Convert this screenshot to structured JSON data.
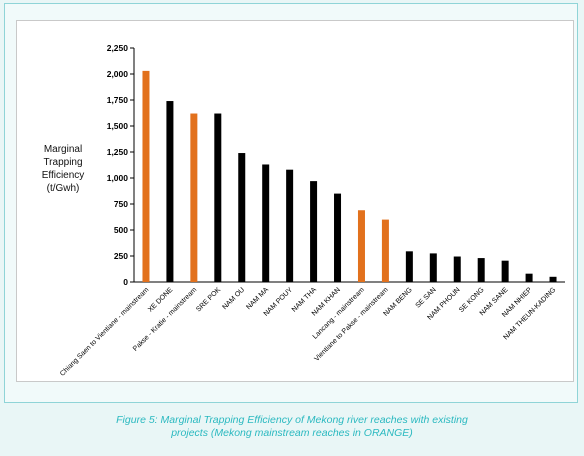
{
  "caption": {
    "line1": "Figure 5: Marginal Trapping Efficiency of Mekong river reaches with existing",
    "line2": "projects (Mekong mainstream reaches in ORANGE)"
  },
  "chart_data": {
    "type": "bar",
    "ylabel": "Marginal\nTrapping\nEfficiency\n(t/Gwh)",
    "ylim": [
      0,
      2250
    ],
    "yticks": [
      0,
      250,
      500,
      750,
      1000,
      1250,
      1500,
      1750,
      2000,
      2250
    ],
    "ytick_labels": [
      "0",
      "250",
      "500",
      "750",
      "1,000",
      "1,250",
      "1,500",
      "1,750",
      "2,000",
      "2,250"
    ],
    "grid": false,
    "colors": {
      "mainstream": "#e2711d",
      "tributary": "#000000"
    },
    "categories": [
      "Chiang Saen to Vientiane - mainstream",
      "XE DONE",
      "Pakse - Kratie - mainstream",
      "SRE POK",
      "NAM OU",
      "NAM MA",
      "NAM POUY",
      "NAM THA",
      "NAM KHAN",
      "Lancang - mainstream",
      "Vientiane to Pakse - mainstream",
      "NAM BENG",
      "SE SAN",
      "NAM PHOUN",
      "SE KONG",
      "NAM SANE",
      "NAM NHIEP",
      "NAM THEUN-KADING"
    ],
    "values": [
      2030,
      1740,
      1620,
      1620,
      1240,
      1130,
      1080,
      970,
      850,
      690,
      600,
      295,
      275,
      245,
      230,
      205,
      80,
      50
    ],
    "mainstream": [
      true,
      false,
      true,
      false,
      false,
      false,
      false,
      false,
      false,
      true,
      true,
      false,
      false,
      false,
      false,
      false,
      false,
      false
    ]
  }
}
